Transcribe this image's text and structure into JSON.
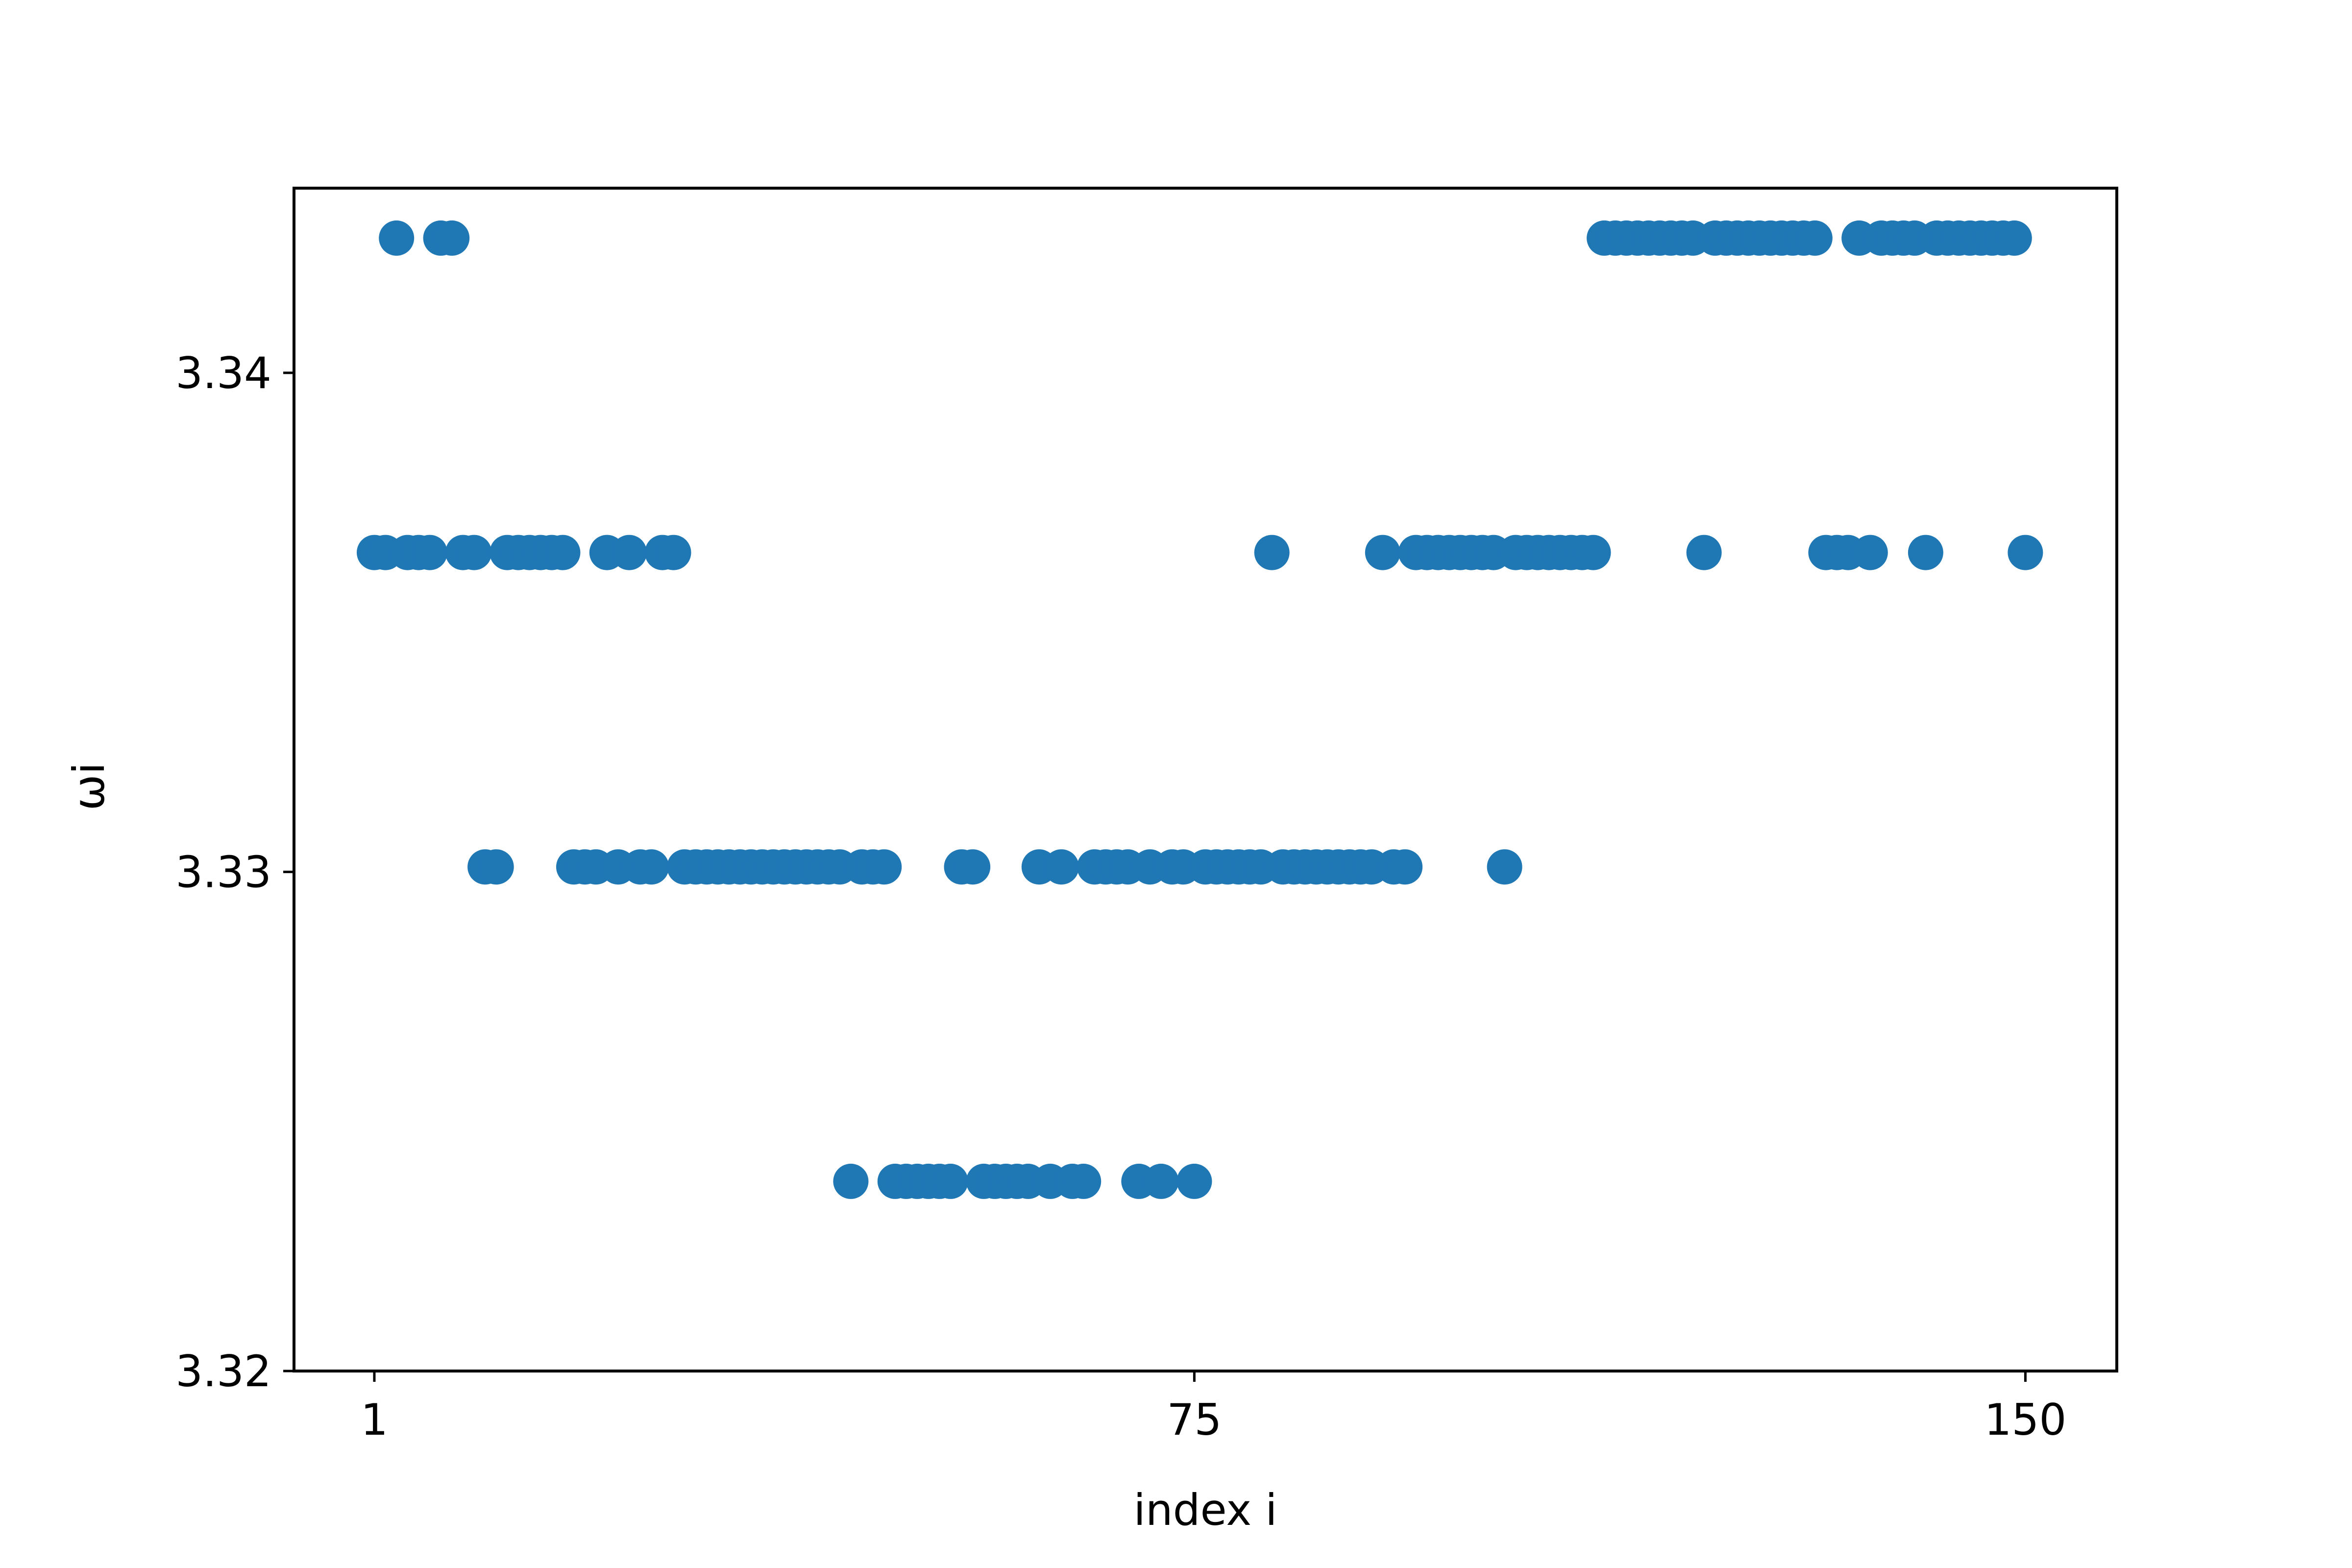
{
  "chart_data": {
    "type": "scatter",
    "xlabel": "index i",
    "ylabel": "ωi",
    "xlim": [
      -6.25,
      158.25
    ],
    "ylim": [
      3.32,
      3.3437
    ],
    "xticks": [
      1,
      75,
      150
    ],
    "xtick_labels": [
      "1",
      "75",
      "150"
    ],
    "yticks": [
      3.32,
      3.33,
      3.34
    ],
    "ytick_labels": [
      "3.32",
      "3.33",
      "3.34"
    ],
    "grid": false,
    "marker_color": "#1f77b4",
    "series": [
      {
        "y_levels": [
          3.3427,
          3.3364,
          3.3301,
          3.3238
        ],
        "points": [
          {
            "x": 1,
            "y": 3.3364
          },
          {
            "x": 2,
            "y": 3.3364
          },
          {
            "x": 3,
            "y": 3.3427
          },
          {
            "x": 4,
            "y": 3.3364
          },
          {
            "x": 5,
            "y": 3.3364
          },
          {
            "x": 6,
            "y": 3.3364
          },
          {
            "x": 7,
            "y": 3.3427
          },
          {
            "x": 8,
            "y": 3.3427
          },
          {
            "x": 9,
            "y": 3.3364
          },
          {
            "x": 10,
            "y": 3.3364
          },
          {
            "x": 11,
            "y": 3.3301
          },
          {
            "x": 12,
            "y": 3.3301
          },
          {
            "x": 13,
            "y": 3.3364
          },
          {
            "x": 14,
            "y": 3.3364
          },
          {
            "x": 15,
            "y": 3.3364
          },
          {
            "x": 16,
            "y": 3.3364
          },
          {
            "x": 17,
            "y": 3.3364
          },
          {
            "x": 18,
            "y": 3.3364
          },
          {
            "x": 19,
            "y": 3.3301
          },
          {
            "x": 20,
            "y": 3.3301
          },
          {
            "x": 21,
            "y": 3.3301
          },
          {
            "x": 22,
            "y": 3.3364
          },
          {
            "x": 23,
            "y": 3.3301
          },
          {
            "x": 24,
            "y": 3.3364
          },
          {
            "x": 25,
            "y": 3.3301
          },
          {
            "x": 26,
            "y": 3.3301
          },
          {
            "x": 27,
            "y": 3.3364
          },
          {
            "x": 28,
            "y": 3.3364
          },
          {
            "x": 29,
            "y": 3.3301
          },
          {
            "x": 30,
            "y": 3.3301
          },
          {
            "x": 31,
            "y": 3.3301
          },
          {
            "x": 32,
            "y": 3.3301
          },
          {
            "x": 33,
            "y": 3.3301
          },
          {
            "x": 34,
            "y": 3.3301
          },
          {
            "x": 35,
            "y": 3.3301
          },
          {
            "x": 36,
            "y": 3.3301
          },
          {
            "x": 37,
            "y": 3.3301
          },
          {
            "x": 38,
            "y": 3.3301
          },
          {
            "x": 39,
            "y": 3.3301
          },
          {
            "x": 40,
            "y": 3.3301
          },
          {
            "x": 41,
            "y": 3.3301
          },
          {
            "x": 42,
            "y": 3.3301
          },
          {
            "x": 43,
            "y": 3.3301
          },
          {
            "x": 44,
            "y": 3.3238
          },
          {
            "x": 45,
            "y": 3.3301
          },
          {
            "x": 46,
            "y": 3.3301
          },
          {
            "x": 47,
            "y": 3.3301
          },
          {
            "x": 48,
            "y": 3.3238
          },
          {
            "x": 49,
            "y": 3.3238
          },
          {
            "x": 50,
            "y": 3.3238
          },
          {
            "x": 51,
            "y": 3.3238
          },
          {
            "x": 52,
            "y": 3.3238
          },
          {
            "x": 53,
            "y": 3.3238
          },
          {
            "x": 54,
            "y": 3.3301
          },
          {
            "x": 55,
            "y": 3.3301
          },
          {
            "x": 56,
            "y": 3.3238
          },
          {
            "x": 57,
            "y": 3.3238
          },
          {
            "x": 58,
            "y": 3.3238
          },
          {
            "x": 59,
            "y": 3.3238
          },
          {
            "x": 60,
            "y": 3.3238
          },
          {
            "x": 61,
            "y": 3.3301
          },
          {
            "x": 62,
            "y": 3.3238
          },
          {
            "x": 63,
            "y": 3.3301
          },
          {
            "x": 64,
            "y": 3.3238
          },
          {
            "x": 65,
            "y": 3.3238
          },
          {
            "x": 66,
            "y": 3.3301
          },
          {
            "x": 67,
            "y": 3.3301
          },
          {
            "x": 68,
            "y": 3.3301
          },
          {
            "x": 69,
            "y": 3.3301
          },
          {
            "x": 70,
            "y": 3.3238
          },
          {
            "x": 71,
            "y": 3.3301
          },
          {
            "x": 72,
            "y": 3.3238
          },
          {
            "x": 73,
            "y": 3.3301
          },
          {
            "x": 74,
            "y": 3.3301
          },
          {
            "x": 75,
            "y": 3.3238
          },
          {
            "x": 76,
            "y": 3.3301
          },
          {
            "x": 77,
            "y": 3.3301
          },
          {
            "x": 78,
            "y": 3.3301
          },
          {
            "x": 79,
            "y": 3.3301
          },
          {
            "x": 80,
            "y": 3.3301
          },
          {
            "x": 81,
            "y": 3.3301
          },
          {
            "x": 82,
            "y": 3.3364
          },
          {
            "x": 83,
            "y": 3.3301
          },
          {
            "x": 84,
            "y": 3.3301
          },
          {
            "x": 85,
            "y": 3.3301
          },
          {
            "x": 86,
            "y": 3.3301
          },
          {
            "x": 87,
            "y": 3.3301
          },
          {
            "x": 88,
            "y": 3.3301
          },
          {
            "x": 89,
            "y": 3.3301
          },
          {
            "x": 90,
            "y": 3.3301
          },
          {
            "x": 91,
            "y": 3.3301
          },
          {
            "x": 92,
            "y": 3.3364
          },
          {
            "x": 93,
            "y": 3.3301
          },
          {
            "x": 94,
            "y": 3.3301
          },
          {
            "x": 95,
            "y": 3.3364
          },
          {
            "x": 96,
            "y": 3.3364
          },
          {
            "x": 97,
            "y": 3.3364
          },
          {
            "x": 98,
            "y": 3.3364
          },
          {
            "x": 99,
            "y": 3.3364
          },
          {
            "x": 100,
            "y": 3.3364
          },
          {
            "x": 101,
            "y": 3.3364
          },
          {
            "x": 102,
            "y": 3.3364
          },
          {
            "x": 103,
            "y": 3.3301
          },
          {
            "x": 104,
            "y": 3.3364
          },
          {
            "x": 105,
            "y": 3.3364
          },
          {
            "x": 106,
            "y": 3.3364
          },
          {
            "x": 107,
            "y": 3.3364
          },
          {
            "x": 108,
            "y": 3.3364
          },
          {
            "x": 109,
            "y": 3.3364
          },
          {
            "x": 110,
            "y": 3.3364
          },
          {
            "x": 111,
            "y": 3.3364
          },
          {
            "x": 112,
            "y": 3.3427
          },
          {
            "x": 113,
            "y": 3.3427
          },
          {
            "x": 114,
            "y": 3.3427
          },
          {
            "x": 115,
            "y": 3.3427
          },
          {
            "x": 116,
            "y": 3.3427
          },
          {
            "x": 117,
            "y": 3.3427
          },
          {
            "x": 118,
            "y": 3.3427
          },
          {
            "x": 119,
            "y": 3.3427
          },
          {
            "x": 120,
            "y": 3.3427
          },
          {
            "x": 121,
            "y": 3.3364
          },
          {
            "x": 122,
            "y": 3.3427
          },
          {
            "x": 123,
            "y": 3.3427
          },
          {
            "x": 124,
            "y": 3.3427
          },
          {
            "x": 125,
            "y": 3.3427
          },
          {
            "x": 126,
            "y": 3.3427
          },
          {
            "x": 127,
            "y": 3.3427
          },
          {
            "x": 128,
            "y": 3.3427
          },
          {
            "x": 129,
            "y": 3.3427
          },
          {
            "x": 130,
            "y": 3.3427
          },
          {
            "x": 131,
            "y": 3.3427
          },
          {
            "x": 132,
            "y": 3.3364
          },
          {
            "x": 133,
            "y": 3.3364
          },
          {
            "x": 134,
            "y": 3.3364
          },
          {
            "x": 135,
            "y": 3.3427
          },
          {
            "x": 136,
            "y": 3.3364
          },
          {
            "x": 137,
            "y": 3.3427
          },
          {
            "x": 138,
            "y": 3.3427
          },
          {
            "x": 139,
            "y": 3.3427
          },
          {
            "x": 140,
            "y": 3.3427
          },
          {
            "x": 141,
            "y": 3.3364
          },
          {
            "x": 142,
            "y": 3.3427
          },
          {
            "x": 143,
            "y": 3.3427
          },
          {
            "x": 144,
            "y": 3.3427
          },
          {
            "x": 145,
            "y": 3.3427
          },
          {
            "x": 146,
            "y": 3.3427
          },
          {
            "x": 147,
            "y": 3.3427
          },
          {
            "x": 148,
            "y": 3.3427
          },
          {
            "x": 149,
            "y": 3.3427
          },
          {
            "x": 150,
            "y": 3.3364
          }
        ]
      }
    ]
  }
}
